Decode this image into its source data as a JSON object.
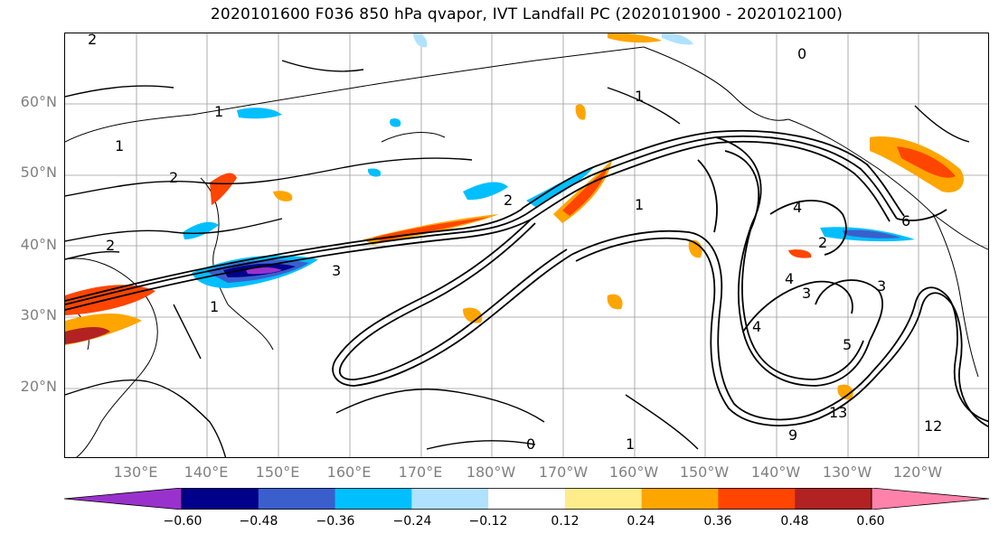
{
  "title": "2020101600 F036 850 hPa qvapor, IVT Landfall PC (2020101900 - 2020102100)",
  "lat_labels": [
    "60°N",
    "50°N",
    "40°N",
    "30°N",
    "20°N"
  ],
  "lon_labels": [
    "130°E",
    "140°E",
    "150°E",
    "160°E",
    "170°E",
    "180°W",
    "170°W",
    "160°W",
    "150°W",
    "140°W",
    "130°W",
    "120°W"
  ],
  "contour_labels": [
    "2",
    "1",
    "0",
    "1",
    "2",
    "1",
    "3",
    "2",
    "1",
    "4",
    "2",
    "3",
    "4",
    "1",
    "6",
    "3",
    "2",
    "5",
    "4",
    "9",
    "12",
    "13",
    "1",
    "0"
  ],
  "colorbar": {
    "tick_labels": [
      "−0.60",
      "−0.48",
      "−0.36",
      "−0.24",
      "−0.12",
      "0.12",
      "0.24",
      "0.36",
      "0.48",
      "0.60"
    ],
    "colors": [
      "#9932CC",
      "#00008B",
      "#3A5FCD",
      "#00BFFF",
      "#B0E2FF",
      "#FFFFFF",
      "#FFEC8B",
      "#FFA500",
      "#FF4500",
      "#B22222",
      "#FF82AB"
    ]
  },
  "features": {
    "jet_axis": "IVT contour bundle",
    "positive_color": "#FFA500",
    "negative_color": "#1E90FF"
  }
}
